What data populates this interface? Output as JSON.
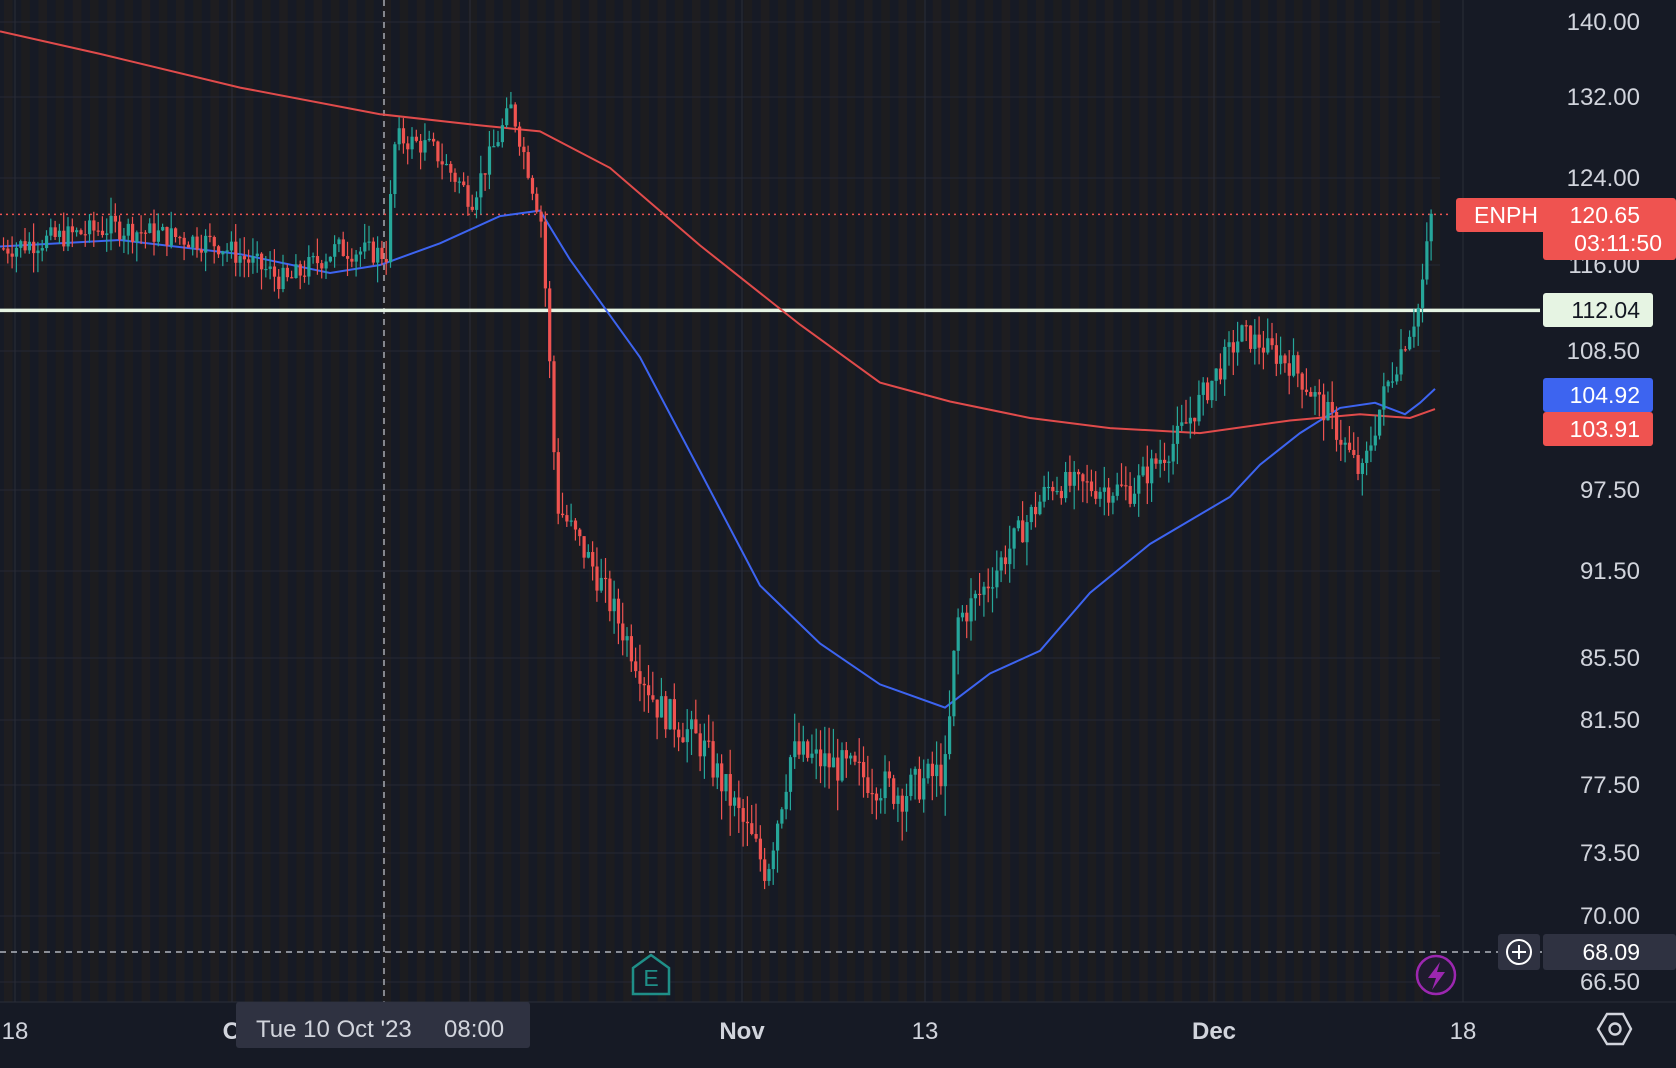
{
  "symbol": "ENPH",
  "colors": {
    "background": "#161a25",
    "up": "#26a69a",
    "down": "#ef5350",
    "ma_blue": "#3d64f0",
    "ma_red": "#e04b4b",
    "level_line": "#e6f4e3",
    "crosshair": "#b0b4bd"
  },
  "price_axis": {
    "ticks": [
      "140.00",
      "132.00",
      "124.00",
      "116.00",
      "108.50",
      "97.50",
      "91.50",
      "85.50",
      "81.50",
      "77.50",
      "73.50",
      "70.00",
      "66.50"
    ],
    "tick_values": [
      140.0,
      132.0,
      124.0,
      116.0,
      108.5,
      97.5,
      91.5,
      85.5,
      81.5,
      77.5,
      73.5,
      70.0,
      66.5
    ]
  },
  "time_axis": {
    "labels": [
      "18",
      "O",
      "Nov",
      "13",
      "Dec",
      "18"
    ],
    "bold": [
      false,
      true,
      true,
      false,
      true,
      false
    ]
  },
  "crosshair": {
    "date_label": "Tue 10 Oct '23",
    "time_label": "08:00",
    "price_label": "68.09",
    "plus_icon": "plus-circle-icon"
  },
  "tags": {
    "symbol_label": "ENPH",
    "last_price": "120.65",
    "countdown": "03:11:50",
    "level_price": "112.04",
    "ma_blue_value": "104.92",
    "ma_red_value": "103.91"
  },
  "markers": {
    "earnings_label": "E",
    "flash_icon": "lightning-icon"
  },
  "settings_icon": "settings-hex-icon",
  "chart_data": {
    "type": "candlestick",
    "description_x": "trading days, Sep 18 2023 to Dec 14 2023",
    "x_labels": [
      "18",
      "O",
      "Nov",
      "13",
      "Dec",
      "18"
    ],
    "close_path": [
      [
        "Sep 18",
        117.5
      ],
      [
        "Sep 22",
        119.5
      ],
      [
        "Sep 26",
        118.0
      ],
      [
        "Sep 29",
        114.5
      ],
      [
        "Oct 2",
        117.5
      ],
      [
        "Oct 6",
        117.0
      ],
      [
        "Oct 10",
        128.0
      ],
      [
        "Oct 13",
        127.0
      ],
      [
        "Oct 17",
        122.0
      ],
      [
        "Oct 19",
        131.0
      ],
      [
        "Oct 23",
        120.0
      ],
      [
        "Oct 24",
        96.5
      ],
      [
        "Oct 27",
        92.0
      ],
      [
        "Oct 30",
        82.5
      ],
      [
        "Nov 1",
        80.0
      ],
      [
        "Nov 3",
        72.5
      ],
      [
        "Nov 6",
        79.5
      ],
      [
        "Nov 9",
        78.5
      ],
      [
        "Nov 10",
        77.0
      ],
      [
        "Nov 13",
        78.5
      ],
      [
        "Nov 14",
        88.0
      ],
      [
        "Nov 16",
        90.0
      ],
      [
        "Nov 20",
        98.0
      ],
      [
        "Nov 24",
        97.5
      ],
      [
        "Nov 28",
        101.5
      ],
      [
        "Dec 1",
        110.0
      ],
      [
        "Dec 5",
        107.5
      ],
      [
        "Dec 7",
        103.0
      ],
      [
        "Dec 11",
        98.5
      ],
      [
        "Dec 12",
        104.5
      ],
      [
        "Dec 13",
        112.5
      ],
      [
        "Dec 14",
        120.65
      ]
    ],
    "moving_averages": [
      {
        "color": "blue",
        "last": 104.92
      },
      {
        "color": "red",
        "last": 103.91
      }
    ],
    "horizontal_level": 112.04,
    "y_range": [
      66.5,
      140.0
    ]
  }
}
